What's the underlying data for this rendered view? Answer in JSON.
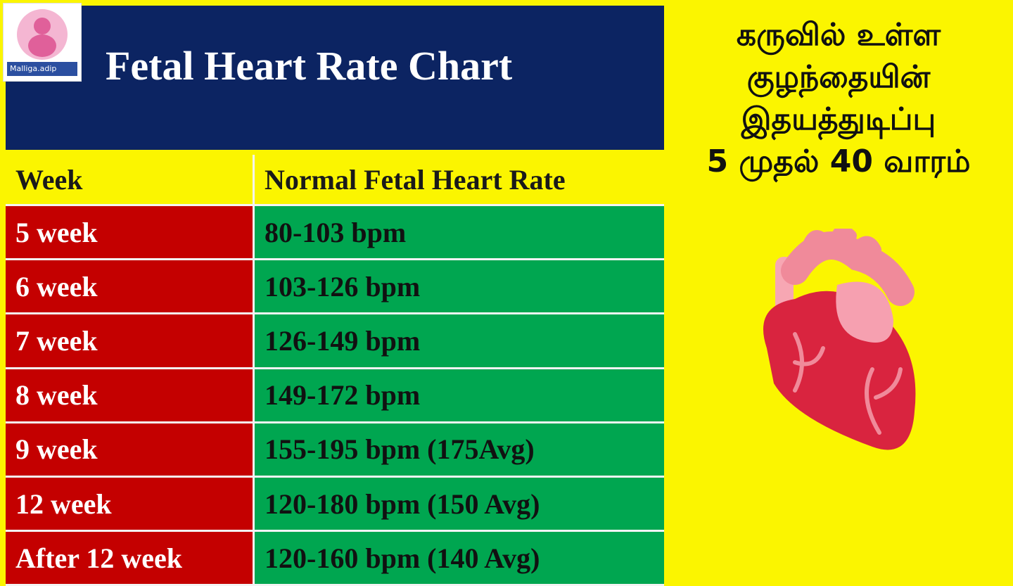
{
  "logo": {
    "label": "Malliga.adip"
  },
  "header": {
    "title": "Fetal Heart Rate Chart"
  },
  "table": {
    "columns": [
      "Week",
      "Normal  Fetal  Heart Rate"
    ],
    "rows": [
      [
        "5 week",
        "80-103 bpm"
      ],
      [
        "6 week",
        "103-126 bpm"
      ],
      [
        "7 week",
        "126-149 bpm"
      ],
      [
        "8 week",
        "149-172 bpm"
      ],
      [
        "9 week",
        "155-195 bpm (175Avg)"
      ],
      [
        "12 week",
        "120-180 bpm (150 Avg)"
      ],
      [
        "After 12 week",
        "120-160 bpm (140 Avg)"
      ]
    ]
  },
  "side_text": {
    "lines": [
      "கருவில் உள்ள",
      "குழந்தையின்",
      "இதயத்துடிப்பு",
      "5 முதல் 40 வாரம்"
    ]
  }
}
